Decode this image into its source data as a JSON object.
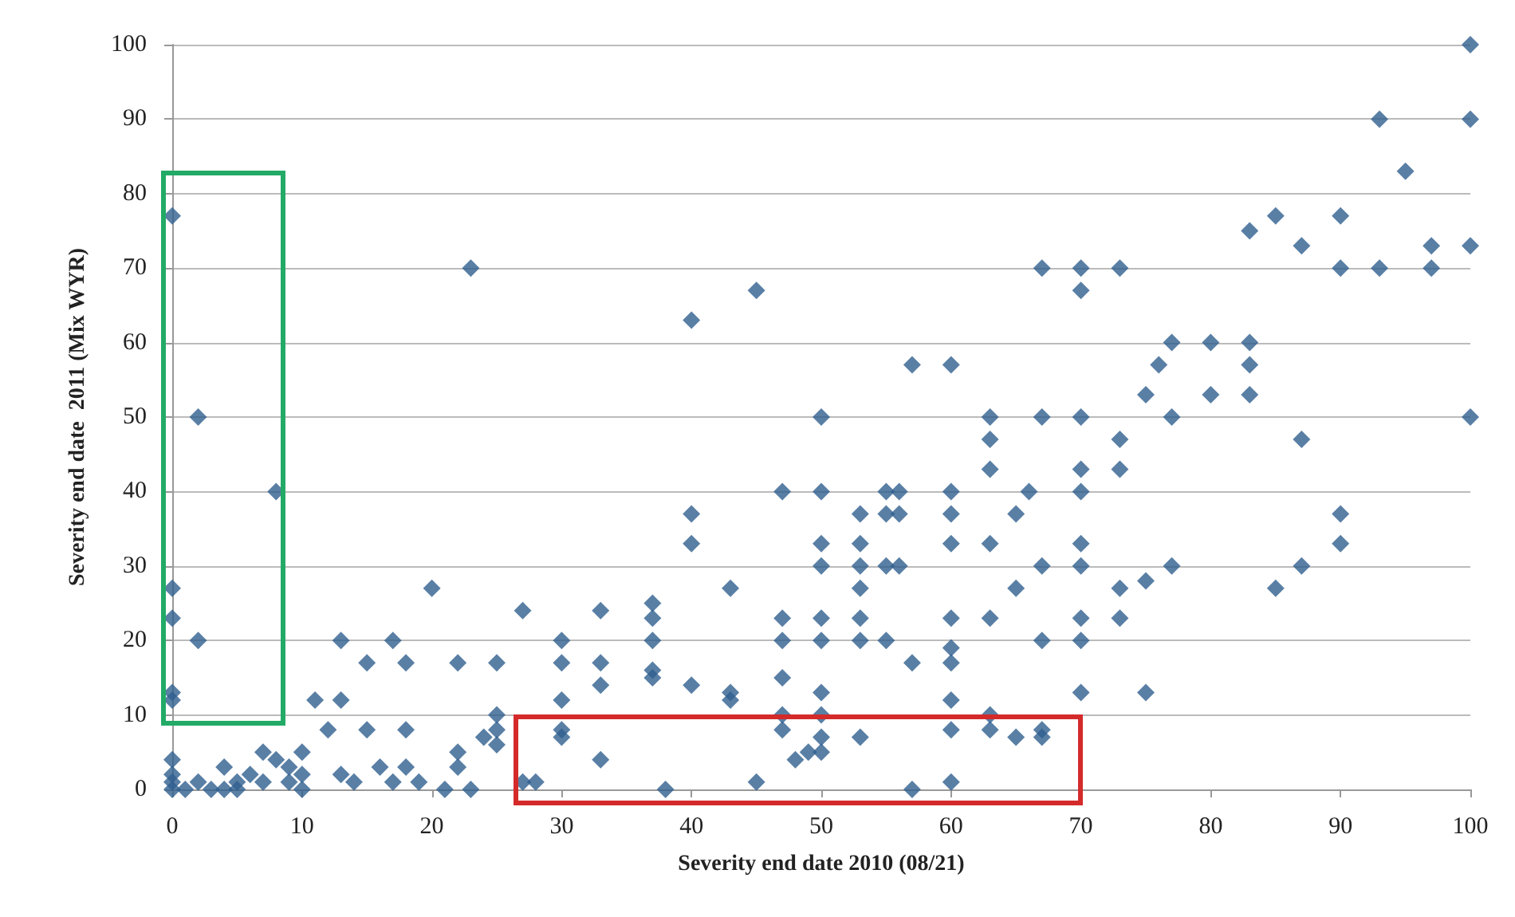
{
  "chart_data": {
    "type": "scatter",
    "xlabel": "Severity end date 2010 (08/21)",
    "ylabel": "Severity end date  2011 (Mix WYR)",
    "xlim": [
      0,
      100
    ],
    "ylim": [
      0,
      100
    ],
    "xticks": [
      0,
      10,
      20,
      30,
      40,
      50,
      60,
      70,
      80,
      90,
      100
    ],
    "yticks": [
      0,
      10,
      20,
      30,
      40,
      50,
      60,
      70,
      80,
      90,
      100
    ],
    "grid": "y",
    "marker": "diamond",
    "series": [
      {
        "color": "#2f5f8f",
        "x": [
          0,
          2,
          8,
          0,
          0,
          2,
          0,
          0,
          0,
          0,
          0,
          0,
          1,
          2,
          3,
          4,
          4,
          5,
          5,
          6,
          7,
          7,
          8,
          9,
          9,
          10,
          10,
          10,
          11,
          12,
          13,
          13,
          13,
          14,
          15,
          15,
          16,
          17,
          17,
          18,
          18,
          18,
          19,
          20,
          21,
          22,
          22,
          22,
          23,
          23,
          24,
          25,
          25,
          25,
          25,
          27,
          27,
          28,
          30,
          30,
          30,
          30,
          30,
          33,
          33,
          33,
          33,
          37,
          37,
          37,
          37,
          37,
          38,
          40,
          40,
          40,
          40,
          43,
          43,
          43,
          45,
          45,
          47,
          47,
          47,
          47,
          47,
          47,
          48,
          49,
          50,
          50,
          50,
          50,
          50,
          50,
          50,
          50,
          50,
          50,
          53,
          53,
          53,
          53,
          53,
          53,
          53,
          55,
          55,
          55,
          55,
          56,
          56,
          56,
          57,
          57,
          57,
          60,
          60,
          60,
          60,
          60,
          60,
          60,
          60,
          60,
          60,
          63,
          63,
          63,
          63,
          63,
          63,
          63,
          65,
          65,
          65,
          66,
          67,
          67,
          67,
          67,
          67,
          67,
          70,
          70,
          70,
          70,
          70,
          70,
          70,
          70,
          70,
          70,
          73,
          73,
          73,
          73,
          73,
          75,
          75,
          75,
          76,
          77,
          77,
          77,
          80,
          80,
          83,
          83,
          83,
          83,
          85,
          85,
          87,
          87,
          87,
          90,
          90,
          90,
          90,
          93,
          93,
          95,
          97,
          97,
          100,
          100,
          100,
          100
        ],
        "values": [
          77,
          50,
          40,
          27,
          23,
          20,
          13,
          12,
          4,
          2,
          1,
          0,
          0,
          1,
          0,
          0,
          3,
          0,
          1,
          2,
          5,
          1,
          4,
          3,
          1,
          5,
          2,
          0,
          12,
          8,
          20,
          12,
          2,
          1,
          17,
          8,
          3,
          20,
          1,
          17,
          8,
          3,
          1,
          27,
          0,
          17,
          5,
          3,
          70,
          0,
          7,
          17,
          10,
          8,
          6,
          24,
          1,
          1,
          20,
          17,
          12,
          8,
          7,
          24,
          17,
          14,
          4,
          25,
          23,
          20,
          16,
          15,
          0,
          63,
          37,
          33,
          14,
          27,
          13,
          12,
          67,
          1,
          40,
          23,
          20,
          15,
          10,
          8,
          4,
          5,
          50,
          40,
          33,
          30,
          23,
          20,
          13,
          10,
          7,
          5,
          37,
          33,
          30,
          27,
          23,
          20,
          7,
          40,
          37,
          30,
          20,
          40,
          37,
          30,
          57,
          17,
          0,
          57,
          40,
          37,
          33,
          23,
          19,
          17,
          12,
          8,
          1,
          50,
          47,
          43,
          33,
          23,
          10,
          8,
          37,
          27,
          7,
          40,
          70,
          50,
          30,
          20,
          8,
          7,
          70,
          67,
          50,
          43,
          40,
          33,
          30,
          23,
          20,
          13,
          70,
          47,
          43,
          27,
          23,
          53,
          28,
          13,
          57,
          60,
          50,
          30,
          60,
          53,
          75,
          60,
          57,
          53,
          77,
          27,
          73,
          47,
          30,
          77,
          70,
          37,
          33,
          90,
          70,
          83,
          73,
          70,
          100,
          90,
          73,
          50
        ]
      }
    ]
  }
}
